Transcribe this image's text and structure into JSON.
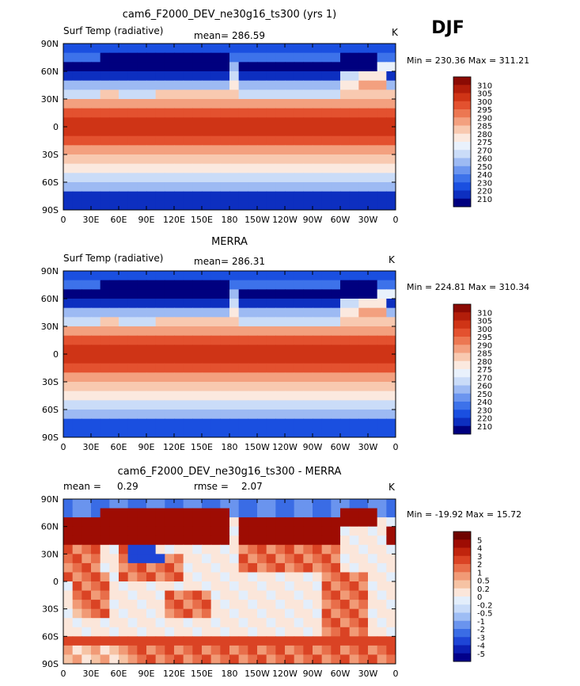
{
  "season": "DJF",
  "colors": {
    "warm_scale": [
      "#00007f",
      "#0d2fc0",
      "#1a4fe0",
      "#3d72ea",
      "#6b95ef",
      "#9dbaf3",
      "#cadcf8",
      "#e9f1fc",
      "#fbe9df",
      "#f8c9b0",
      "#f3a07f",
      "#ec7752",
      "#e3512f",
      "#cf3416",
      "#b21d0a",
      "#8b0a03"
    ],
    "diff_scale": [
      "#02008a",
      "#0c1fb3",
      "#1e45d6",
      "#3a6ce5",
      "#6a94ee",
      "#9ebdf4",
      "#c8dbf8",
      "#e3eefb",
      "#fbe6da",
      "#f6c3a4",
      "#f19a76",
      "#e86e4a",
      "#da4324",
      "#c0240d",
      "#9e0c03",
      "#6f0300"
    ]
  },
  "chart_data": [
    {
      "type": "heatmap",
      "name": "model",
      "title": "cam6_F2000_DEV_ne30g16_ts300 (yrs 1)",
      "left_label": "Surf Temp (radiative)",
      "stat_label": "mean=",
      "stat_value": "286.59",
      "units": "K",
      "min_max_text": "Min = 230.36 Max = 311.21",
      "colorbar_labels": [
        "210",
        "220",
        "230",
        "240",
        "250",
        "260",
        "270",
        "275",
        "280",
        "285",
        "290",
        "295",
        "300",
        "305",
        "310"
      ],
      "x_ticks": [
        "0",
        "30E",
        "60E",
        "90E",
        "120E",
        "150E",
        "180",
        "150W",
        "120W",
        "90W",
        "60W",
        "30W",
        "0"
      ],
      "y_ticks": [
        "90N",
        "60N",
        "30N",
        "0",
        "30S",
        "60S",
        "90S"
      ],
      "xlim": [
        0,
        360
      ],
      "ylim": [
        -90,
        90
      ]
    },
    {
      "type": "heatmap",
      "name": "obs",
      "title": "MERRA",
      "left_label": "Surf Temp (radiative)",
      "stat_label": "mean=",
      "stat_value": "286.31",
      "units": "K",
      "min_max_text": "Min = 224.81 Max = 310.34",
      "colorbar_labels": [
        "210",
        "220",
        "230",
        "240",
        "250",
        "260",
        "270",
        "275",
        "280",
        "285",
        "290",
        "295",
        "300",
        "305",
        "310"
      ],
      "x_ticks": [
        "0",
        "30E",
        "60E",
        "90E",
        "120E",
        "150E",
        "180",
        "150W",
        "120W",
        "90W",
        "60W",
        "30W",
        "0"
      ],
      "y_ticks": [
        "90N",
        "60N",
        "30N",
        "0",
        "30S",
        "60S",
        "90S"
      ],
      "xlim": [
        0,
        360
      ],
      "ylim": [
        -90,
        90
      ]
    },
    {
      "type": "heatmap",
      "name": "diff",
      "title": "cam6_F2000_DEV_ne30g16_ts300 - MERRA",
      "left_label": "mean =",
      "left_value": "0.29",
      "stat_label": "rmse =",
      "stat_value": "2.07",
      "units": "K",
      "min_max_text": "Min = -19.92 Max =  15.72",
      "colorbar_labels": [
        "-5",
        "-4",
        "-3",
        "-2",
        "-1",
        "-0.5",
        "-0.2",
        "0",
        "0.2",
        "0.5",
        "1",
        "2",
        "3",
        "4",
        "5"
      ],
      "x_ticks": [
        "0",
        "30E",
        "60E",
        "90E",
        "120E",
        "150E",
        "180",
        "150W",
        "120W",
        "90W",
        "60W",
        "30W",
        "0"
      ],
      "y_ticks": [
        "90N",
        "60N",
        "30N",
        "0",
        "30S",
        "60S",
        "90S"
      ],
      "xlim": [
        0,
        360
      ],
      "ylim": [
        -90,
        90
      ]
    }
  ]
}
